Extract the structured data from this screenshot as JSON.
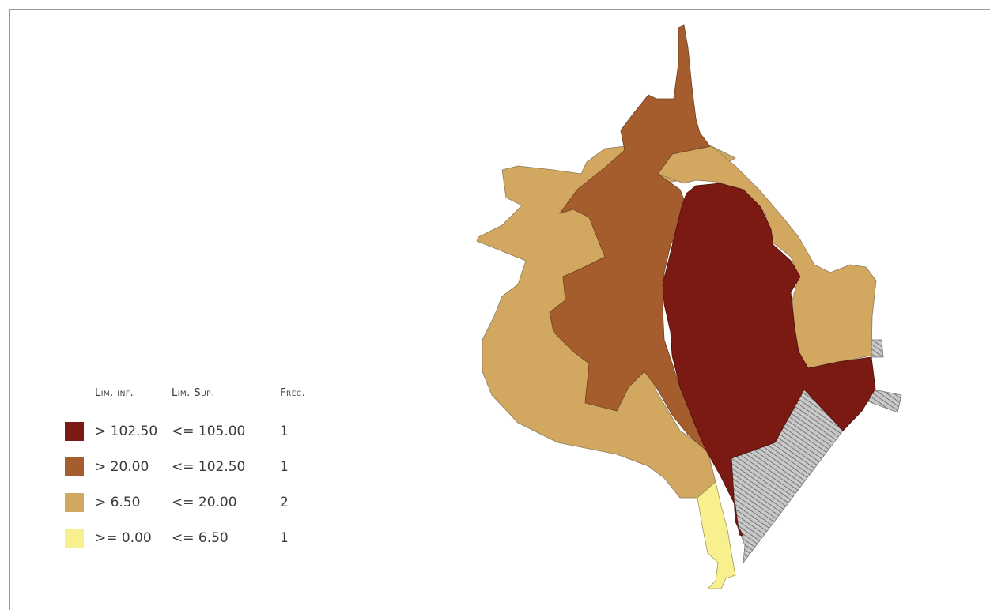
{
  "legend": {
    "headers": {
      "lim_inf": "Lim. inf.",
      "lim_sup": "Lim. Sup.",
      "frec": "Frec."
    },
    "classes": [
      {
        "lim_inf": "> 102.50",
        "lim_sup": "<= 105.00",
        "frec": "1",
        "color": "#7b1a12"
      },
      {
        "lim_inf": "> 20.00",
        "lim_sup": "<= 102.50",
        "frec": "1",
        "color": "#a65d2e"
      },
      {
        "lim_inf": "> 6.50",
        "lim_sup": "<= 20.00",
        "frec": "2",
        "color": "#d2a75f"
      },
      {
        "lim_inf": ">= 0.00",
        "lim_sup": "<= 6.50",
        "frec": "1",
        "color": "#f8ef8f"
      }
    ]
  },
  "map": {
    "regions": [
      {
        "name": "region-west",
        "class_index": 2
      },
      {
        "name": "region-northeast",
        "class_index": 2
      },
      {
        "name": "region-central-west",
        "class_index": 1
      },
      {
        "name": "region-central-east",
        "class_index": 0
      },
      {
        "name": "region-south",
        "class_index": 3
      }
    ],
    "nodata_color": "#9b9b9b"
  }
}
